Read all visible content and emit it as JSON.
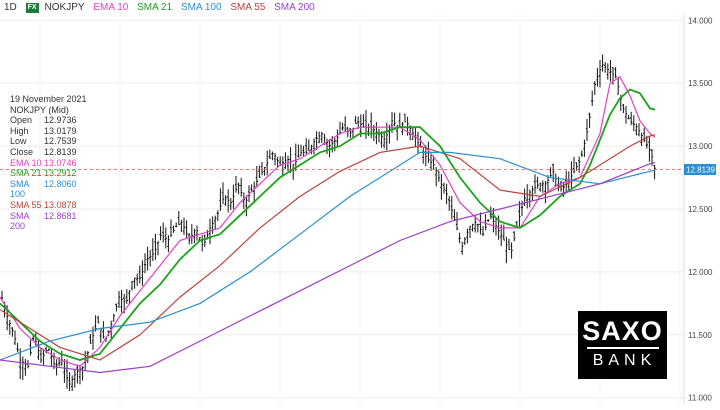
{
  "header": {
    "timeframe": "1D",
    "fx_badge": "FX",
    "symbol": "NOKJPY",
    "indicators": [
      {
        "label": "EMA 10",
        "color": "#e040c8"
      },
      {
        "label": "SMA 21",
        "color": "#1aa31a"
      },
      {
        "label": "SMA 100",
        "color": "#2a8fd0"
      },
      {
        "label": "SMA 55",
        "color": "#b8443a"
      },
      {
        "label": "SMA 200",
        "color": "#9b3fc6"
      }
    ]
  },
  "info_panel": {
    "date": "19 November 2021",
    "instrument": "NOKJPY (Mid)",
    "rows": [
      {
        "label": "Open",
        "value": "12.9736"
      },
      {
        "label": "High",
        "value": "13.0179"
      },
      {
        "label": "Low",
        "value": "12.7539"
      },
      {
        "label": "Close",
        "value": "12.8139"
      },
      {
        "label": "EMA 10",
        "value": "13.0746",
        "color": "#e040c8"
      },
      {
        "label": "SMA 21",
        "value": "13.2912",
        "color": "#1aa31a"
      },
      {
        "label": "SMA 100",
        "value": "12.8060",
        "color": "#2a8fd0"
      },
      {
        "label": "SMA 55",
        "value": "13.0878",
        "color": "#b8443a"
      },
      {
        "label": "SMA 200",
        "value": "12.8681",
        "color": "#9b3fc6"
      }
    ]
  },
  "price_tag": {
    "value": "12.8139",
    "color": "#2a8fd0"
  },
  "logo": {
    "line1": "SAXO",
    "line2": "BANK"
  },
  "chart_data": {
    "type": "line",
    "title": "",
    "xlabel": "",
    "ylabel": "",
    "ylim": [
      10.95,
      14.05
    ],
    "yticks": [
      "14.000",
      "13.500",
      "13.000",
      "12.500",
      "12.000",
      "11.500",
      "11.000"
    ],
    "ytick_values": [
      14.0,
      13.5,
      13.0,
      12.5,
      12.0,
      11.5,
      11.0
    ],
    "grid": true,
    "current_price": 12.8139,
    "series": [
      {
        "name": "NOKJPY",
        "style": "ohlc",
        "color": "#111111",
        "x": [
          0,
          7,
          14,
          20,
          28,
          34,
          41,
          48,
          55,
          62,
          69,
          76,
          84,
          91,
          98,
          105,
          112,
          119,
          126,
          133,
          140,
          147,
          154,
          161,
          168,
          175,
          182,
          189,
          196,
          203,
          210,
          217,
          224,
          231,
          238,
          245,
          252,
          259,
          266,
          273,
          280,
          287,
          294,
          301,
          308,
          315,
          322,
          329,
          336,
          343,
          350,
          357,
          364,
          371,
          378,
          385,
          392,
          399,
          406,
          413,
          420,
          427,
          434,
          441,
          448,
          455,
          462,
          469,
          476,
          483,
          490,
          497,
          504,
          511,
          518,
          525,
          532,
          539,
          546,
          553,
          560,
          567,
          574,
          581,
          588,
          595,
          602,
          609,
          616,
          623,
          630,
          637,
          644,
          651,
          655
        ],
        "y": [
          11.85,
          11.65,
          11.5,
          11.3,
          11.25,
          11.5,
          11.3,
          11.4,
          11.25,
          11.3,
          11.1,
          11.2,
          11.25,
          11.45,
          11.6,
          11.45,
          11.6,
          11.8,
          11.75,
          11.95,
          11.95,
          12.1,
          12.15,
          12.3,
          12.25,
          12.35,
          12.4,
          12.25,
          12.35,
          12.2,
          12.35,
          12.45,
          12.6,
          12.55,
          12.7,
          12.55,
          12.65,
          12.75,
          12.85,
          12.95,
          12.85,
          12.9,
          12.85,
          12.95,
          12.95,
          13.05,
          13.1,
          13.0,
          13.05,
          13.15,
          13.1,
          13.2,
          13.15,
          13.15,
          13.1,
          13.05,
          13.2,
          13.15,
          13.2,
          13.1,
          13.0,
          12.9,
          12.85,
          12.7,
          12.6,
          12.4,
          12.2,
          12.35,
          12.4,
          12.3,
          12.45,
          12.35,
          12.25,
          12.15,
          12.4,
          12.6,
          12.65,
          12.7,
          12.7,
          12.8,
          12.65,
          12.7,
          12.8,
          12.9,
          13.15,
          13.5,
          13.65,
          13.6,
          13.55,
          13.3,
          13.2,
          13.15,
          13.05,
          12.95,
          12.81
        ]
      },
      {
        "name": "EMA 10",
        "color": "#e040c8",
        "x": [
          0,
          20,
          40,
          60,
          80,
          100,
          120,
          140,
          160,
          180,
          200,
          220,
          240,
          260,
          280,
          300,
          320,
          340,
          360,
          380,
          400,
          420,
          440,
          460,
          480,
          500,
          520,
          540,
          560,
          580,
          600,
          610,
          620,
          630,
          640,
          650,
          655
        ],
        "y": [
          11.8,
          11.55,
          11.4,
          11.3,
          11.25,
          11.4,
          11.65,
          11.85,
          12.05,
          12.25,
          12.3,
          12.35,
          12.55,
          12.7,
          12.85,
          12.9,
          13.0,
          13.1,
          13.15,
          13.15,
          13.15,
          13.05,
          12.85,
          12.55,
          12.4,
          12.35,
          12.35,
          12.6,
          12.7,
          12.75,
          13.1,
          13.5,
          13.55,
          13.4,
          13.2,
          13.1,
          13.07
        ]
      },
      {
        "name": "SMA 21",
        "color": "#1aa31a",
        "x": [
          0,
          20,
          40,
          60,
          80,
          100,
          120,
          140,
          160,
          180,
          200,
          220,
          240,
          260,
          280,
          300,
          320,
          340,
          360,
          380,
          400,
          420,
          440,
          460,
          480,
          500,
          520,
          540,
          560,
          580,
          590,
          600,
          610,
          620,
          630,
          640,
          650,
          655
        ],
        "y": [
          11.75,
          11.6,
          11.45,
          11.35,
          11.3,
          11.35,
          11.55,
          11.75,
          11.9,
          12.1,
          12.25,
          12.3,
          12.45,
          12.6,
          12.75,
          12.85,
          12.95,
          13.0,
          13.1,
          13.1,
          13.15,
          13.15,
          13.0,
          12.75,
          12.55,
          12.4,
          12.35,
          12.45,
          12.6,
          12.7,
          12.85,
          13.05,
          13.25,
          13.38,
          13.45,
          13.42,
          13.3,
          13.29
        ]
      },
      {
        "name": "SMA 55",
        "color": "#b8443a",
        "x": [
          0,
          30,
          60,
          100,
          140,
          180,
          220,
          260,
          300,
          340,
          380,
          420,
          460,
          500,
          540,
          580,
          610,
          630,
          650,
          655
        ],
        "y": [
          11.7,
          11.55,
          11.4,
          11.3,
          11.5,
          11.8,
          12.05,
          12.35,
          12.6,
          12.8,
          12.95,
          13.0,
          12.9,
          12.65,
          12.6,
          12.75,
          12.9,
          13.0,
          13.08,
          13.09
        ]
      },
      {
        "name": "SMA 100",
        "color": "#2a8fd0",
        "x": [
          0,
          50,
          100,
          150,
          200,
          250,
          300,
          350,
          400,
          420,
          450,
          500,
          550,
          600,
          650,
          655
        ],
        "y": [
          11.3,
          11.45,
          11.55,
          11.6,
          11.75,
          12.0,
          12.3,
          12.6,
          12.85,
          12.95,
          12.95,
          12.9,
          12.75,
          12.7,
          12.8,
          12.81
        ]
      },
      {
        "name": "SMA 200",
        "color": "#9b3fc6",
        "x": [
          0,
          50,
          100,
          150,
          200,
          250,
          300,
          350,
          400,
          450,
          500,
          550,
          600,
          650,
          655
        ],
        "y": [
          11.3,
          11.25,
          11.2,
          11.25,
          11.45,
          11.65,
          11.85,
          12.05,
          12.25,
          12.4,
          12.5,
          12.6,
          12.7,
          12.86,
          12.87
        ]
      }
    ]
  }
}
